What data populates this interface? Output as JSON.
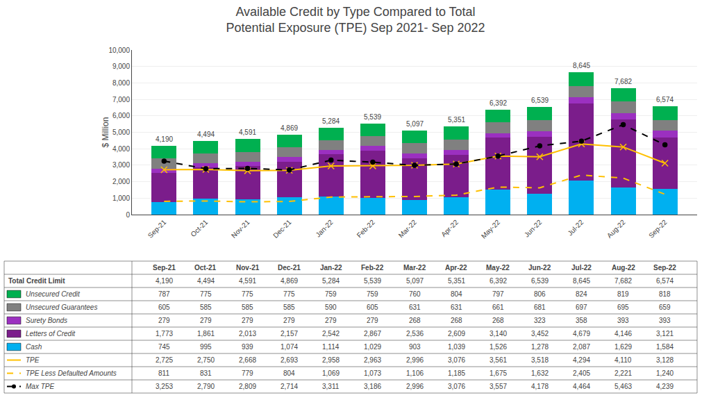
{
  "chart_data": {
    "type": "bar",
    "stacked": true,
    "title": "Available Credit by Type Compared to Total",
    "subtitle": "Potential Exposure (TPE) Sep 2021- Sep 2022",
    "ylabel": "$ Million",
    "categories": [
      "Sep-21",
      "Oct-21",
      "Nov-21",
      "Dec-21",
      "Jan-22",
      "Feb-22",
      "Mar-22",
      "Apr-22",
      "May-22",
      "Jun-22",
      "Jul-22",
      "Aug-22",
      "Sep-22"
    ],
    "ylim": [
      0,
      10000
    ],
    "yticks": [
      0,
      {
        "value": 1000,
        "label": "1,000"
      },
      {
        "value": 2000,
        "label": "2,000"
      },
      {
        "value": 3000,
        "label": "3,000"
      },
      {
        "value": 4000,
        "label": "4,000"
      },
      {
        "value": 5000,
        "label": "5,000"
      },
      {
        "value": 6000,
        "label": "6,000"
      },
      {
        "value": 7000,
        "label": "7,000"
      },
      {
        "value": 8000,
        "label": "8,000"
      },
      {
        "value": 9000,
        "label": "9,000"
      },
      {
        "value": 10000,
        "label": "10,000"
      }
    ],
    "grid": true,
    "series": [
      {
        "name": "Total Credit Limit",
        "type": "text",
        "values": [
          4190,
          4494,
          4591,
          4869,
          5284,
          5539,
          5097,
          5351,
          6392,
          6539,
          8645,
          7682,
          6574
        ],
        "value_labels": [
          "4,190",
          "4,494",
          "4,591",
          "4,869",
          "5,284",
          "5,539",
          "5,097",
          "5,351",
          "6,392",
          "6,539",
          "8,645",
          "7,682",
          "6,574"
        ]
      },
      {
        "name": "Unsecured Credit",
        "type": "bar",
        "color": "#00B050",
        "values": [
          787,
          775,
          775,
          775,
          759,
          759,
          760,
          804,
          797,
          806,
          824,
          819,
          818
        ]
      },
      {
        "name": "Unsecured Guarantees",
        "type": "bar",
        "color": "#808080",
        "values": [
          605,
          585,
          585,
          585,
          590,
          605,
          631,
          631,
          661,
          681,
          697,
          695,
          659
        ]
      },
      {
        "name": "Surety Bonds",
        "type": "bar",
        "color": "#9B30C0",
        "values": [
          279,
          279,
          279,
          279,
          279,
          279,
          268,
          268,
          268,
          323,
          358,
          393,
          393
        ]
      },
      {
        "name": "Letters of Credit",
        "type": "bar",
        "color": "#7B1D8B",
        "values": [
          1773,
          1861,
          2013,
          2157,
          2542,
          2867,
          2536,
          2609,
          3140,
          3452,
          4679,
          4146,
          3121
        ],
        "value_labels": [
          "1,773",
          "1,861",
          "2,013",
          "2,157",
          "2,542",
          "2,867",
          "2,536",
          "2,609",
          "3,140",
          "3,452",
          "4,679",
          "4,146",
          "3,121"
        ]
      },
      {
        "name": "Cash",
        "type": "bar",
        "color": "#00B0F0",
        "values": [
          745,
          995,
          939,
          1074,
          1114,
          1029,
          903,
          1039,
          1526,
          1278,
          2087,
          1629,
          1584
        ],
        "value_labels": [
          "745",
          "995",
          "939",
          "1,074",
          "1,114",
          "1,029",
          "903",
          "1,039",
          "1,526",
          "1,278",
          "2,087",
          "1,629",
          "1,584"
        ]
      },
      {
        "name": "TPE",
        "type": "line",
        "color": "#FFC000",
        "line_style": "solid",
        "marker": "x",
        "values": [
          2725,
          2750,
          2668,
          2693,
          2958,
          2963,
          2996,
          3076,
          3561,
          3518,
          4294,
          4110,
          3128
        ],
        "value_labels": [
          "2,725",
          "2,750",
          "2,668",
          "2,693",
          "2,958",
          "2,963",
          "2,996",
          "3,076",
          "3,561",
          "3,518",
          "4,294",
          "4,110",
          "3,128"
        ]
      },
      {
        "name": "TPE Less Defaulted Amounts",
        "type": "line",
        "color": "#FFC000",
        "line_style": "dash",
        "values": [
          811,
          831,
          779,
          804,
          1069,
          1073,
          1106,
          1185,
          1675,
          1632,
          2405,
          2221,
          1240
        ],
        "value_labels": [
          "811",
          "831",
          "779",
          "804",
          "1,069",
          "1,073",
          "1,106",
          "1,185",
          "1,675",
          "1,632",
          "2,405",
          "2,221",
          "1,240"
        ]
      },
      {
        "name": "Max TPE",
        "type": "line",
        "color": "#000000",
        "line_style": "dash",
        "marker": "circle",
        "values": [
          3253,
          2790,
          2809,
          2714,
          3311,
          3186,
          2996,
          3076,
          3557,
          4178,
          4464,
          5463,
          4239
        ],
        "value_labels": [
          "3,253",
          "2,790",
          "2,809",
          "2,714",
          "3,311",
          "3,186",
          "2,996",
          "3,076",
          "3,557",
          "4,178",
          "4,464",
          "5,463",
          "4,239"
        ]
      }
    ]
  }
}
